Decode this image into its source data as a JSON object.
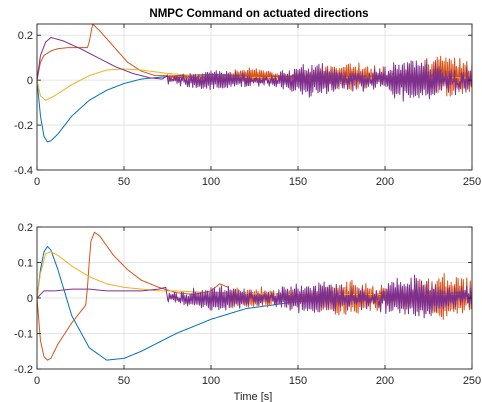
{
  "chart_data": [
    {
      "type": "line",
      "title": "NMPC Command on actuated directions",
      "xlabel": "",
      "ylabel": "",
      "xlim": [
        0,
        250
      ],
      "ylim": [
        -0.4,
        0.25
      ],
      "xticks": [
        "0",
        "50",
        "100",
        "150",
        "200",
        "250"
      ],
      "yticks": [
        "-0.4",
        "-0.2",
        "0",
        "0.2"
      ],
      "grid": true,
      "series": [
        {
          "color": "#0072BD",
          "x": [
            0,
            2,
            4,
            6,
            8,
            12,
            20,
            30,
            40,
            50,
            60,
            80,
            100,
            120,
            150,
            250
          ],
          "y": [
            0,
            -0.16,
            -0.25,
            -0.275,
            -0.27,
            -0.24,
            -0.16,
            -0.09,
            -0.045,
            -0.015,
            0.005,
            0.02,
            0.025,
            0.02,
            0.015,
            0.012
          ]
        },
        {
          "color": "#D95319",
          "x": [
            0,
            2,
            4,
            8,
            12,
            18,
            24,
            29,
            30,
            31,
            32,
            36,
            44,
            52,
            60,
            68,
            75
          ],
          "y": [
            0,
            0.08,
            0.11,
            0.13,
            0.14,
            0.145,
            0.145,
            0.145,
            0.17,
            0.21,
            0.25,
            0.22,
            0.15,
            0.08,
            0.04,
            0.02,
            0.02
          ],
          "noise": {
            "from": 75,
            "to": 250,
            "base": 0.015,
            "amp_start": 0.01,
            "amp_end": 0.07
          }
        },
        {
          "color": "#EDB120",
          "x": [
            0,
            2,
            5,
            10,
            20,
            30,
            40,
            50,
            60,
            75,
            100,
            150,
            250
          ],
          "y": [
            0,
            -0.07,
            -0.09,
            -0.07,
            -0.02,
            0.02,
            0.045,
            0.05,
            0.045,
            0.03,
            0.015,
            0.01,
            0.01
          ]
        },
        {
          "color": "#7E2F8E",
          "x": [
            0,
            2,
            5,
            8,
            15,
            25,
            35,
            45,
            55,
            65,
            72,
            75
          ],
          "y": [
            0,
            0.11,
            0.17,
            0.19,
            0.175,
            0.14,
            0.1,
            0.06,
            0.03,
            0.01,
            0.005,
            0.02
          ],
          "noise": {
            "from": 75,
            "to": 250,
            "base": 0.0,
            "amp_start": 0.025,
            "amp_end": 0.08
          }
        }
      ]
    },
    {
      "type": "line",
      "title": "",
      "xlabel": "Time [s]",
      "ylabel": "",
      "xlim": [
        0,
        250
      ],
      "ylim": [
        -0.2,
        0.2
      ],
      "xticks": [
        "0",
        "50",
        "100",
        "150",
        "200",
        "250"
      ],
      "yticks": [
        "-0.2",
        "-0.1",
        "0",
        "0.1",
        "0.2"
      ],
      "grid": true,
      "series": [
        {
          "color": "#0072BD",
          "x": [
            0,
            2,
            4,
            6,
            8,
            12,
            20,
            30,
            40,
            50,
            60,
            80,
            100,
            120,
            150,
            200,
            250
          ],
          "y": [
            0,
            0.08,
            0.13,
            0.145,
            0.135,
            0.08,
            -0.05,
            -0.14,
            -0.175,
            -0.17,
            -0.15,
            -0.1,
            -0.06,
            -0.03,
            -0.01,
            0.0,
            0.005
          ]
        },
        {
          "color": "#D95319",
          "x": [
            0,
            2,
            4,
            6,
            8,
            12,
            20,
            28,
            29,
            30,
            31,
            33,
            36,
            44,
            52,
            60,
            70,
            80,
            90,
            100,
            105,
            110
          ],
          "y": [
            0,
            -0.12,
            -0.165,
            -0.175,
            -0.17,
            -0.13,
            -0.07,
            -0.02,
            0.03,
            0.1,
            0.16,
            0.185,
            0.175,
            0.12,
            0.08,
            0.05,
            0.03,
            0.015,
            0.01,
            0.02,
            0.04,
            0.03
          ],
          "noise": {
            "from": 110,
            "to": 250,
            "base": 0.0,
            "amp_start": 0.02,
            "amp_end": 0.05
          }
        },
        {
          "color": "#EDB120",
          "x": [
            0,
            2,
            5,
            8,
            12,
            20,
            30,
            40,
            50,
            60,
            70,
            80,
            100,
            120,
            150,
            250
          ],
          "y": [
            0,
            0.07,
            0.125,
            0.13,
            0.12,
            0.09,
            0.06,
            0.04,
            0.03,
            0.025,
            0.02,
            0.02,
            0.015,
            0.012,
            0.01,
            0.01
          ]
        },
        {
          "color": "#7E2F8E",
          "x": [
            0,
            4,
            10,
            20,
            30,
            40,
            50,
            60,
            70,
            74,
            75
          ],
          "y": [
            0,
            0.02,
            0.02,
            0.025,
            0.025,
            0.02,
            0.02,
            0.02,
            0.025,
            0.03,
            0.0
          ],
          "noise": {
            "from": 75,
            "to": 250,
            "base": 0.0,
            "amp_start": 0.02,
            "amp_end": 0.05
          }
        }
      ]
    }
  ]
}
